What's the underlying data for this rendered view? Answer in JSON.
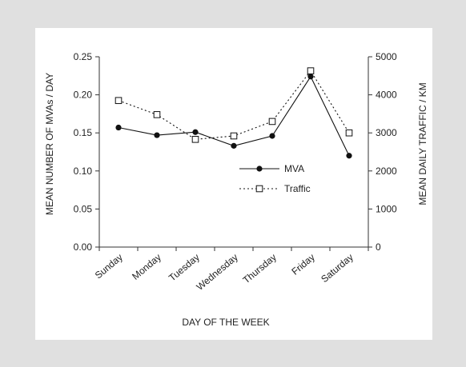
{
  "chart_data": {
    "type": "line",
    "categories": [
      "Sunday",
      "Monday",
      "Tuesday",
      "Wednesday",
      "Thursday",
      "Friday",
      "Saturday"
    ],
    "xlabel": "DAY OF THE WEEK",
    "ylabel": "MEAN NUMBER OF MVAs / DAY",
    "y2label": "MEAN DAILY TRAFFIC / KM",
    "ylim": [
      0,
      0.25
    ],
    "y2lim": [
      0,
      5000
    ],
    "yticks": [
      "0.00",
      "0.05",
      "0.10",
      "0.15",
      "0.20",
      "0.25"
    ],
    "y2ticks": [
      "0",
      "1000",
      "2000",
      "3000",
      "4000",
      "5000"
    ],
    "series": [
      {
        "name": "MVA",
        "axis": "left",
        "style": "solid",
        "marker": "filled-circle",
        "color": "#111111",
        "values": [
          0.157,
          0.147,
          0.151,
          0.133,
          0.146,
          0.224,
          0.12
        ]
      },
      {
        "name": "Traffic",
        "axis": "right",
        "style": "dotted",
        "marker": "open-square",
        "color": "#111111",
        "values": [
          3850,
          3480,
          2830,
          2920,
          3300,
          4630,
          3000
        ]
      }
    ],
    "legend_position": "center-right",
    "grid": false
  }
}
